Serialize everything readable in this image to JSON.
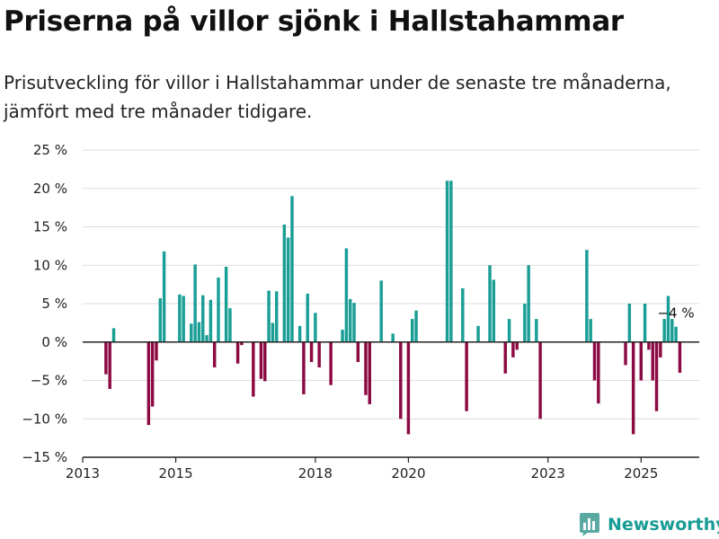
{
  "title": "Priserna på villor sjönk i Hallstahammar",
  "subtitle": "Prisutveckling för villor i Hallstahammar under de senaste tre månaderna, jämfört med tre månader tidigare.",
  "brand": {
    "name": "Newsworthy",
    "logo_icon": "bar-chart-logo-icon"
  },
  "colors": {
    "positive": "#1a9e96",
    "negative": "#8c0a43",
    "grid": "#dddddd",
    "axis": "#222222",
    "brand": "#179c95"
  },
  "chart_data": {
    "type": "bar",
    "title": "Priserna på villor sjönk i Hallstahammar",
    "xlabel": "",
    "ylabel": "",
    "xlim": [
      "2013-01",
      "2026-04"
    ],
    "ylim": [
      -15,
      25
    ],
    "yticks": [
      -15,
      -10,
      -5,
      0,
      5,
      10,
      15,
      20,
      25
    ],
    "ytick_labels": [
      "−15 %",
      "−10 %",
      "−5 %",
      "0 %",
      "5 %",
      "10 %",
      "15 %",
      "20 %",
      "25 %"
    ],
    "xticks": [
      "2013-01",
      "2015-01",
      "2018-01",
      "2020-01",
      "2023-01",
      "2025-01"
    ],
    "xtick_labels": [
      "2013",
      "2015",
      "2018",
      "2020",
      "2023",
      "2025"
    ],
    "grid": true,
    "color_rule": "positive values teal, negative values dark red",
    "annotation": {
      "text": "−4 %",
      "at": "2025-08"
    },
    "series": [
      {
        "values": [
          {
            "x": "2013-07",
            "y": -4.2
          },
          {
            "x": "2013-08",
            "y": -6.1
          },
          {
            "x": "2013-09",
            "y": 1.8
          },
          {
            "x": "2014-06",
            "y": -10.8
          },
          {
            "x": "2014-07",
            "y": -8.4
          },
          {
            "x": "2014-08",
            "y": -2.4
          },
          {
            "x": "2014-09",
            "y": 5.7
          },
          {
            "x": "2014-10",
            "y": 11.8
          },
          {
            "x": "2015-02",
            "y": 6.2
          },
          {
            "x": "2015-03",
            "y": 6.0
          },
          {
            "x": "2015-05",
            "y": 2.4
          },
          {
            "x": "2015-06",
            "y": 10.1
          },
          {
            "x": "2015-07",
            "y": 2.6
          },
          {
            "x": "2015-08",
            "y": 6.1
          },
          {
            "x": "2015-09",
            "y": 0.9
          },
          {
            "x": "2015-10",
            "y": 5.5
          },
          {
            "x": "2015-11",
            "y": -3.3
          },
          {
            "x": "2015-12",
            "y": 8.4
          },
          {
            "x": "2016-02",
            "y": 9.8
          },
          {
            "x": "2016-03",
            "y": 4.4
          },
          {
            "x": "2016-05",
            "y": -2.8
          },
          {
            "x": "2016-06",
            "y": -0.4
          },
          {
            "x": "2016-09",
            "y": -7.1
          },
          {
            "x": "2016-11",
            "y": -4.8
          },
          {
            "x": "2016-12",
            "y": -5.1
          },
          {
            "x": "2017-01",
            "y": 6.7
          },
          {
            "x": "2017-02",
            "y": 2.5
          },
          {
            "x": "2017-03",
            "y": 6.6
          },
          {
            "x": "2017-05",
            "y": 15.3
          },
          {
            "x": "2017-06",
            "y": 13.6
          },
          {
            "x": "2017-07",
            "y": 19.0
          },
          {
            "x": "2017-09",
            "y": 2.1
          },
          {
            "x": "2017-10",
            "y": -6.8
          },
          {
            "x": "2017-11",
            "y": 6.3
          },
          {
            "x": "2017-12",
            "y": -2.6
          },
          {
            "x": "2018-01",
            "y": 3.8
          },
          {
            "x": "2018-02",
            "y": -3.3
          },
          {
            "x": "2018-05",
            "y": -5.6
          },
          {
            "x": "2018-08",
            "y": 1.6
          },
          {
            "x": "2018-09",
            "y": 12.2
          },
          {
            "x": "2018-10",
            "y": 5.6
          },
          {
            "x": "2018-11",
            "y": 5.1
          },
          {
            "x": "2018-12",
            "y": -2.6
          },
          {
            "x": "2019-02",
            "y": -6.9
          },
          {
            "x": "2019-03",
            "y": -8.1
          },
          {
            "x": "2019-06",
            "y": 8.0
          },
          {
            "x": "2019-09",
            "y": 1.1
          },
          {
            "x": "2019-11",
            "y": -10.0
          },
          {
            "x": "2020-01",
            "y": -12.0
          },
          {
            "x": "2020-02",
            "y": 3.0
          },
          {
            "x": "2020-03",
            "y": 4.1
          },
          {
            "x": "2020-11",
            "y": 21.0
          },
          {
            "x": "2020-12",
            "y": 21.0
          },
          {
            "x": "2021-03",
            "y": 7.0
          },
          {
            "x": "2021-04",
            "y": -9.0
          },
          {
            "x": "2021-07",
            "y": 2.1
          },
          {
            "x": "2021-10",
            "y": 10.0
          },
          {
            "x": "2021-11",
            "y": 8.1
          },
          {
            "x": "2022-02",
            "y": -4.1
          },
          {
            "x": "2022-03",
            "y": 3.0
          },
          {
            "x": "2022-04",
            "y": -2.0
          },
          {
            "x": "2022-05",
            "y": -1.0
          },
          {
            "x": "2022-07",
            "y": 5.0
          },
          {
            "x": "2022-08",
            "y": 10.0
          },
          {
            "x": "2022-10",
            "y": 3.0
          },
          {
            "x": "2022-11",
            "y": -10.0
          },
          {
            "x": "2023-11",
            "y": 12.0
          },
          {
            "x": "2023-12",
            "y": 3.0
          },
          {
            "x": "2024-01",
            "y": -5.0
          },
          {
            "x": "2024-02",
            "y": -8.0
          },
          {
            "x": "2024-09",
            "y": -3.0
          },
          {
            "x": "2024-10",
            "y": 5.0
          },
          {
            "x": "2024-11",
            "y": -12.0
          },
          {
            "x": "2025-01",
            "y": -5.0
          },
          {
            "x": "2025-02",
            "y": 5.0
          },
          {
            "x": "2025-03",
            "y": -1.0
          },
          {
            "x": "2025-04",
            "y": -5.0
          },
          {
            "x": "2025-05",
            "y": -9.0
          },
          {
            "x": "2025-06",
            "y": -2.0
          },
          {
            "x": "2025-07",
            "y": 3.0
          },
          {
            "x": "2025-08",
            "y": 6.0
          },
          {
            "x": "2025-09",
            "y": 3.0
          },
          {
            "x": "2025-10",
            "y": 2.0
          },
          {
            "x": "2025-11",
            "y": -4.0
          }
        ]
      }
    ]
  }
}
